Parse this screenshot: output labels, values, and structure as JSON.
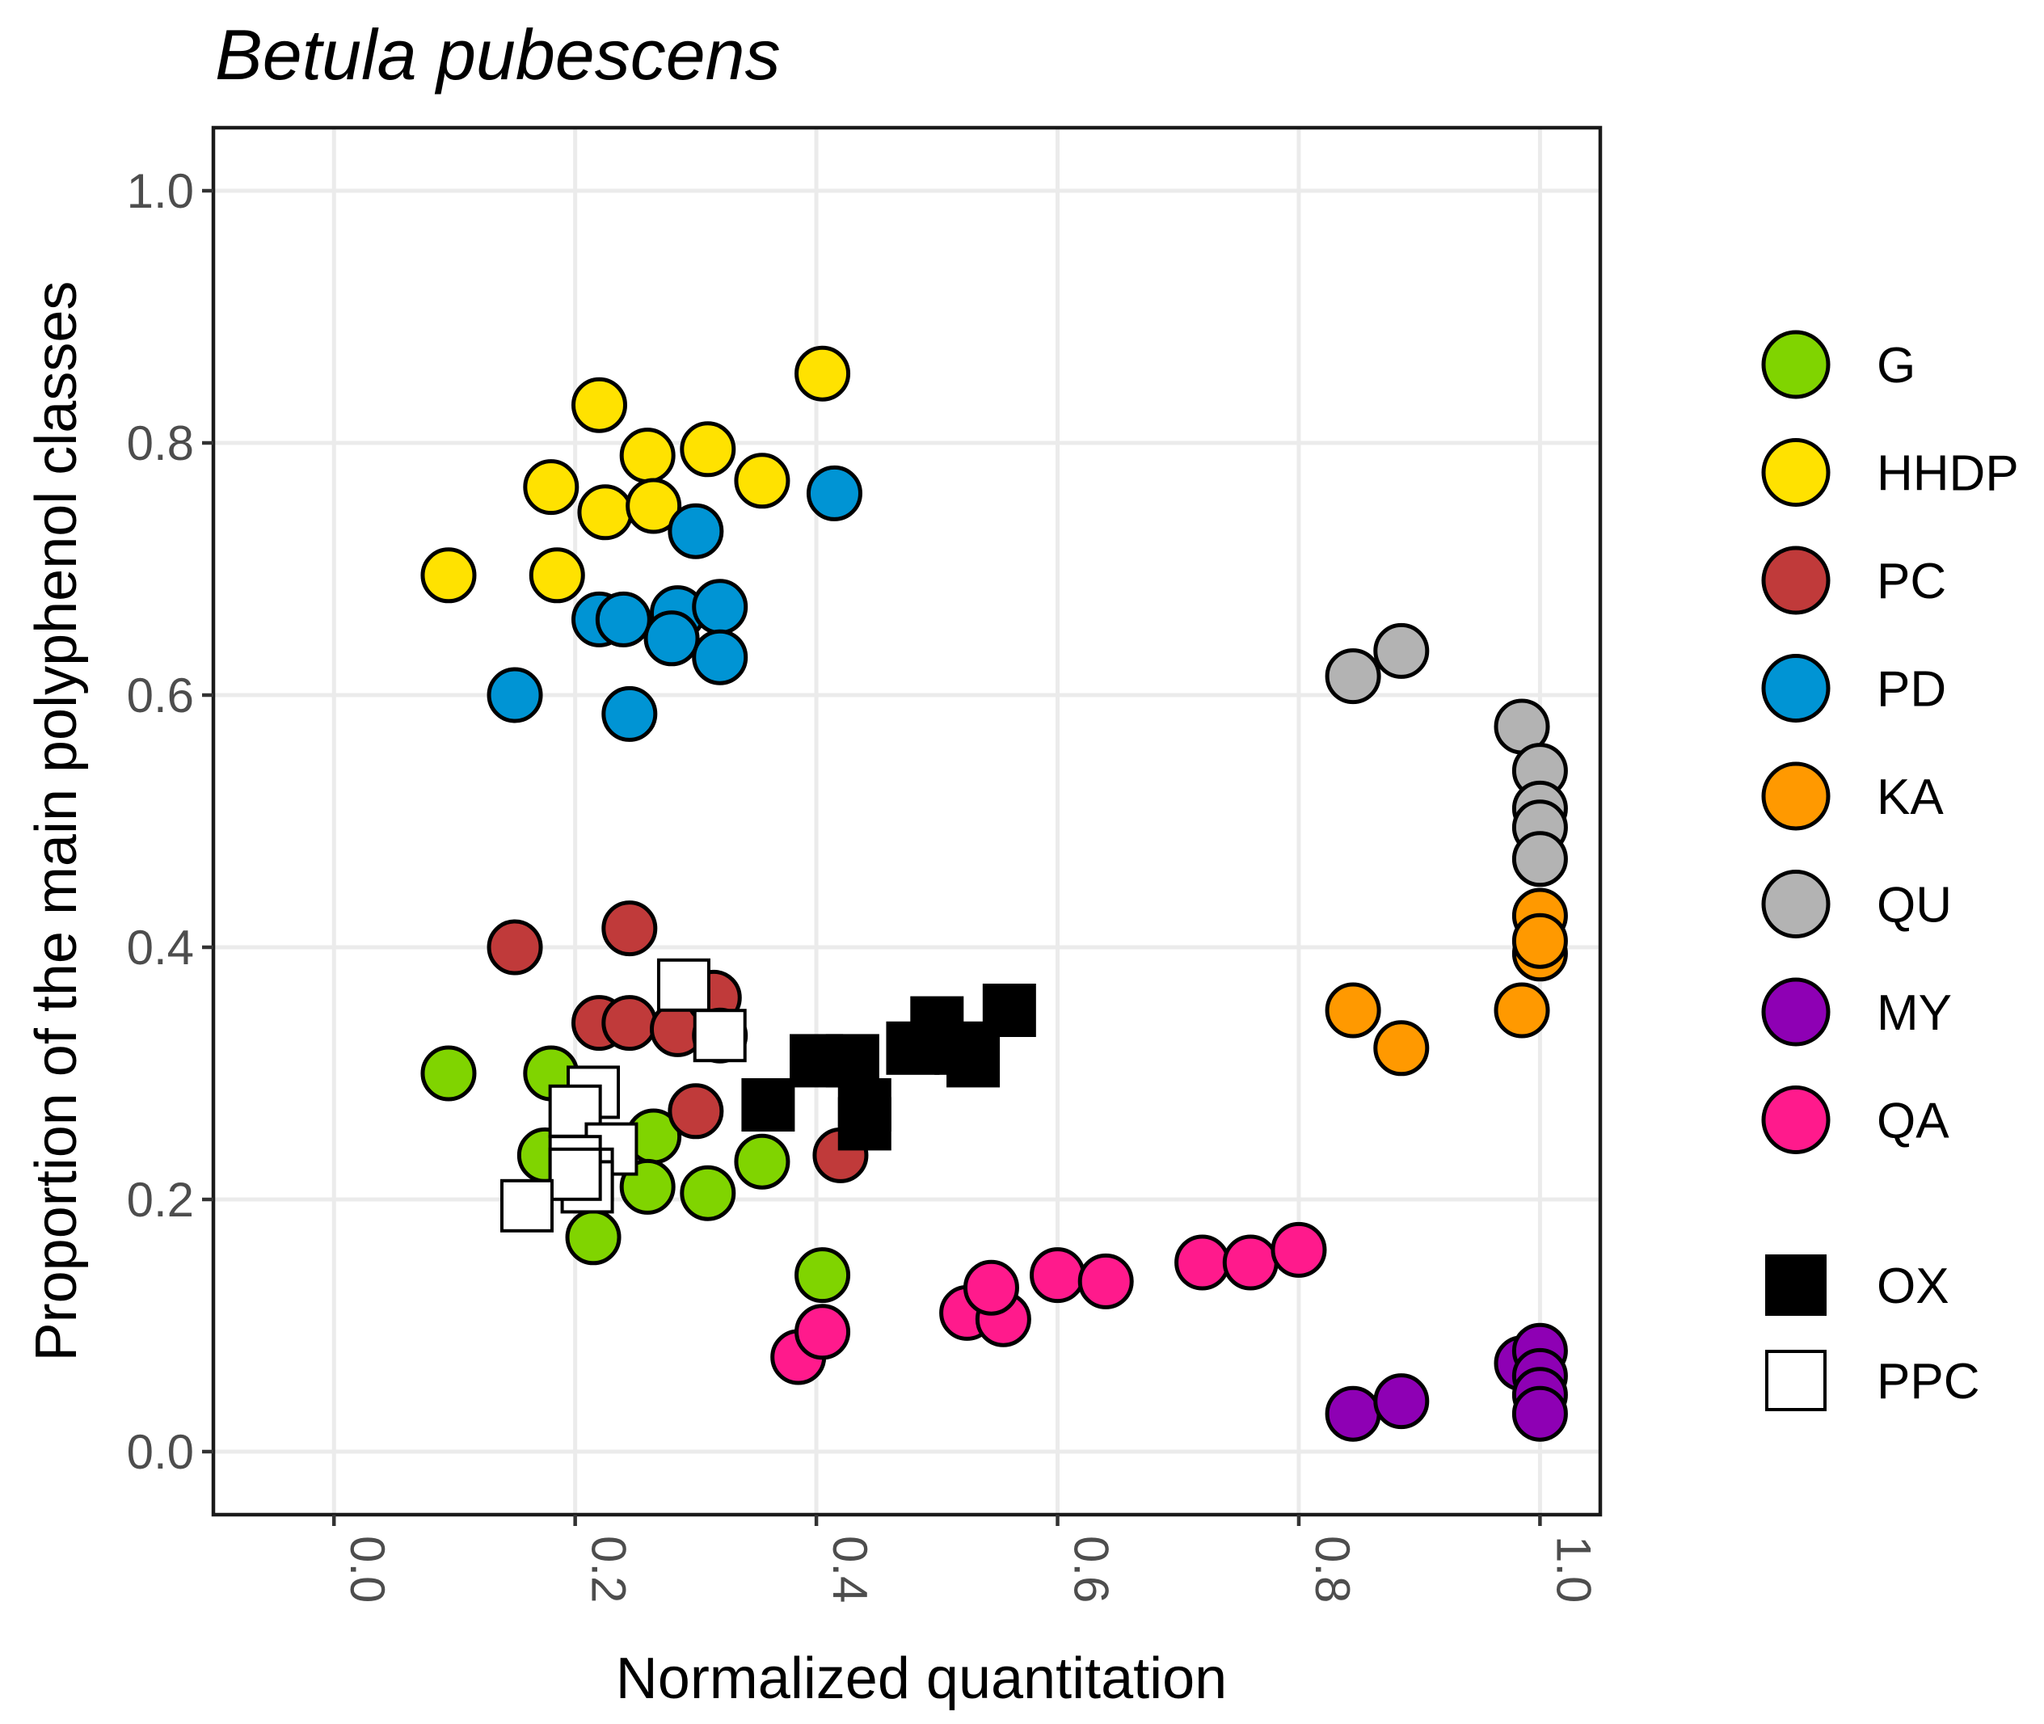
{
  "chart_data": {
    "type": "scatter",
    "title": "Betula pubescens",
    "xlabel": "Normalized quantitation",
    "ylabel": "Proportion of the main polyphenol classes",
    "xlim": [
      -0.1,
      1.05
    ],
    "ylim": [
      -0.05,
      1.05
    ],
    "x_ticks": [
      0.0,
      0.2,
      0.4,
      0.6,
      0.8,
      1.0
    ],
    "x_tick_labels": [
      "0.0",
      "0.2",
      "0.4",
      "0.6",
      "0.8",
      "1.0"
    ],
    "y_ticks": [
      0.0,
      0.2,
      0.4,
      0.6,
      0.8,
      1.0
    ],
    "y_tick_labels": [
      "0.0",
      "0.2",
      "0.4",
      "0.6",
      "0.8",
      "1.0"
    ],
    "grid": true,
    "legend_position": "right",
    "series": [
      {
        "name": "G",
        "color": "#80d400",
        "marker": "circle",
        "points": [
          [
            0.095,
            0.3
          ],
          [
            0.18,
            0.3
          ],
          [
            0.175,
            0.235
          ],
          [
            0.215,
            0.17
          ],
          [
            0.21,
            0.24
          ],
          [
            0.265,
            0.25
          ],
          [
            0.26,
            0.21
          ],
          [
            0.31,
            0.205
          ],
          [
            0.355,
            0.23
          ],
          [
            0.405,
            0.14
          ]
        ]
      },
      {
        "name": "HHDP",
        "color": "#ffe200",
        "marker": "circle",
        "points": [
          [
            0.22,
            0.83
          ],
          [
            0.18,
            0.765
          ],
          [
            0.225,
            0.745
          ],
          [
            0.26,
            0.79
          ],
          [
            0.265,
            0.75
          ],
          [
            0.31,
            0.795
          ],
          [
            0.355,
            0.77
          ],
          [
            0.405,
            0.855
          ],
          [
            0.095,
            0.695
          ],
          [
            0.185,
            0.695
          ]
        ]
      },
      {
        "name": "PC",
        "color": "#c03a3a",
        "marker": "circle",
        "points": [
          [
            0.15,
            0.4
          ],
          [
            0.245,
            0.415
          ],
          [
            0.22,
            0.34
          ],
          [
            0.245,
            0.34
          ],
          [
            0.285,
            0.335
          ],
          [
            0.315,
            0.36
          ],
          [
            0.32,
            0.33
          ],
          [
            0.3,
            0.27
          ],
          [
            0.42,
            0.235
          ]
        ]
      },
      {
        "name": "PD",
        "color": "#0094d4",
        "marker": "circle",
        "points": [
          [
            0.3,
            0.73
          ],
          [
            0.415,
            0.76
          ],
          [
            0.22,
            0.66
          ],
          [
            0.24,
            0.66
          ],
          [
            0.285,
            0.665
          ],
          [
            0.28,
            0.645
          ],
          [
            0.32,
            0.67
          ],
          [
            0.32,
            0.63
          ],
          [
            0.15,
            0.6
          ],
          [
            0.245,
            0.585
          ]
        ]
      },
      {
        "name": "KA",
        "color": "#ff9900",
        "marker": "circle",
        "points": [
          [
            0.845,
            0.35
          ],
          [
            0.885,
            0.32
          ],
          [
            0.985,
            0.35
          ],
          [
            1.0,
            0.425
          ],
          [
            1.0,
            0.395
          ],
          [
            1.0,
            0.405
          ]
        ]
      },
      {
        "name": "QU",
        "color": "#b3b3b3",
        "marker": "circle",
        "points": [
          [
            0.845,
            0.615
          ],
          [
            0.885,
            0.635
          ],
          [
            0.985,
            0.575
          ],
          [
            1.0,
            0.54
          ],
          [
            1.0,
            0.51
          ],
          [
            1.0,
            0.495
          ],
          [
            1.0,
            0.47
          ]
        ]
      },
      {
        "name": "MY",
        "color": "#8e00b4",
        "marker": "circle",
        "points": [
          [
            0.845,
            0.03
          ],
          [
            0.885,
            0.04
          ],
          [
            0.985,
            0.07
          ],
          [
            1.0,
            0.08
          ],
          [
            1.0,
            0.06
          ],
          [
            1.0,
            0.045
          ],
          [
            1.0,
            0.03
          ]
        ]
      },
      {
        "name": "QA",
        "color": "#ff1a8c",
        "marker": "circle",
        "points": [
          [
            0.385,
            0.075
          ],
          [
            0.405,
            0.095
          ],
          [
            0.525,
            0.11
          ],
          [
            0.555,
            0.105
          ],
          [
            0.545,
            0.13
          ],
          [
            0.6,
            0.14
          ],
          [
            0.64,
            0.135
          ],
          [
            0.72,
            0.15
          ],
          [
            0.76,
            0.15
          ],
          [
            0.8,
            0.16
          ]
        ]
      },
      {
        "name": "OX",
        "color": "#000000",
        "marker": "square",
        "points": [
          [
            0.36,
            0.275
          ],
          [
            0.4,
            0.31
          ],
          [
            0.43,
            0.31
          ],
          [
            0.44,
            0.275
          ],
          [
            0.44,
            0.26
          ],
          [
            0.48,
            0.32
          ],
          [
            0.5,
            0.34
          ],
          [
            0.52,
            0.32
          ],
          [
            0.53,
            0.31
          ],
          [
            0.56,
            0.35
          ]
        ]
      },
      {
        "name": "PPC",
        "color": "#ffffff",
        "marker": "square",
        "points": [
          [
            0.29,
            0.37
          ],
          [
            0.32,
            0.33
          ],
          [
            0.215,
            0.285
          ],
          [
            0.2,
            0.27
          ],
          [
            0.23,
            0.24
          ],
          [
            0.21,
            0.22
          ],
          [
            0.2,
            0.23
          ],
          [
            0.21,
            0.21
          ],
          [
            0.2,
            0.22
          ],
          [
            0.16,
            0.195
          ]
        ]
      }
    ]
  }
}
